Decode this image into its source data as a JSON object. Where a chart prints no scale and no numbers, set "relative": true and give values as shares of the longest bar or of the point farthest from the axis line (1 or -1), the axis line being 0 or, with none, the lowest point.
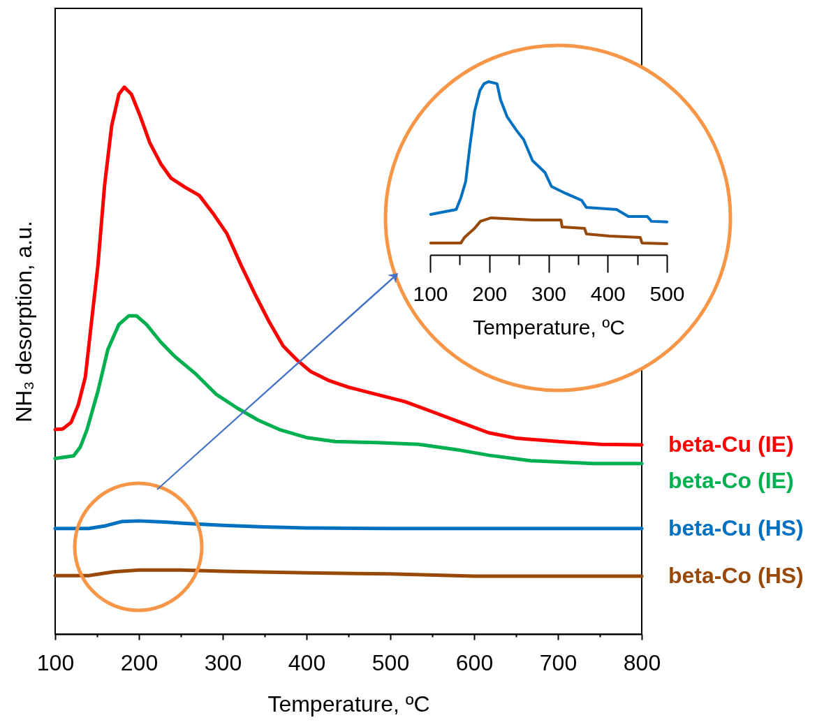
{
  "chart_data": [
    {
      "type": "line",
      "relative": true,
      "xlabel": "Temperature, ºC",
      "ylabel": "NH₃ desorption, a.u.",
      "xlim": [
        100,
        800
      ],
      "xticks": [
        100,
        {
          "value": 150,
          "label": null
        },
        200,
        {
          "value": 250,
          "label": null
        },
        300,
        {
          "value": 350,
          "label": null
        },
        400,
        {
          "value": 450,
          "label": null
        },
        500,
        {
          "value": 550,
          "label": null
        },
        600,
        {
          "value": 650,
          "label": null
        },
        700,
        {
          "value": 750,
          "label": null
        },
        800
      ],
      "series": [
        {
          "name": "beta-Cu (IE)",
          "color": "#ff0000",
          "x": [
            100,
            109,
            119,
            127.5,
            136,
            142.5,
            151,
            159,
            167.5,
            176,
            182.5,
            191,
            201,
            213,
            226,
            238,
            255,
            272,
            288,
            305,
            322,
            338,
            355,
            372,
            388,
            405,
            426,
            451,
            484,
            517.5,
            551,
            584,
            617.5,
            651,
            701,
            751,
            800
          ],
          "values": [
            0.374,
            0.375,
            0.387,
            0.419,
            0.47,
            0.559,
            0.674,
            0.821,
            0.93,
            0.987,
            1.0,
            0.987,
            0.949,
            0.898,
            0.86,
            0.834,
            0.817,
            0.802,
            0.77,
            0.732,
            0.674,
            0.623,
            0.572,
            0.527,
            0.502,
            0.48,
            0.464,
            0.451,
            0.438,
            0.425,
            0.406,
            0.387,
            0.368,
            0.358,
            0.352,
            0.347,
            0.346
          ]
        },
        {
          "name": "beta-Co (IE)",
          "color": "#00b050",
          "x": [
            100,
            122,
            130,
            138,
            151,
            163,
            176,
            188,
            197,
            209,
            226,
            242.5,
            267.5,
            292.5,
            317.5,
            342.5,
            367.5,
            401,
            434,
            484,
            534,
            584,
            617.5,
            667.5,
            742.5,
            800
          ],
          "values": [
            0.321,
            0.326,
            0.342,
            0.374,
            0.444,
            0.521,
            0.566,
            0.582,
            0.582,
            0.566,
            0.534,
            0.508,
            0.476,
            0.438,
            0.413,
            0.391,
            0.374,
            0.359,
            0.352,
            0.35,
            0.347,
            0.336,
            0.327,
            0.317,
            0.312,
            0.312
          ]
        },
        {
          "name": "beta-Cu (HS)",
          "color": "#0070c0",
          "x": [
            100,
            140,
            160,
            180,
            200,
            230,
            260,
            300,
            350,
            400,
            500,
            800
          ],
          "values": [
            0.193,
            0.193,
            0.198,
            0.206,
            0.207,
            0.205,
            0.202,
            0.199,
            0.196,
            0.194,
            0.193,
            0.193
          ]
        },
        {
          "name": "beta-Co (HS)",
          "color": "#984807",
          "x": [
            100,
            140,
            170,
            200,
            250,
            300,
            400,
            500,
            600,
            800
          ],
          "values": [
            0.107,
            0.107,
            0.114,
            0.117,
            0.117,
            0.115,
            0.112,
            0.11,
            0.106,
            0.106
          ]
        }
      ]
    },
    {
      "type": "line",
      "relative": true,
      "xlabel": "Temperature, ºC",
      "xlim": [
        100,
        500
      ],
      "xticks": [
        100,
        {
          "value": 150,
          "label": null
        },
        200,
        {
          "value": 250,
          "label": null
        },
        300,
        {
          "value": 350,
          "label": null
        },
        400,
        {
          "value": 450,
          "label": null
        },
        500
      ],
      "series": [
        {
          "color": "#0070c0",
          "x": [
            101,
            144,
            152,
            160,
            167,
            175,
            184,
            191,
            199,
            213,
            219,
            230,
            246,
            258,
            273,
            294,
            305,
            329,
            356,
            364,
            415,
            435,
            467,
            474,
            500
          ],
          "values": [
            0.234,
            0.262,
            0.331,
            0.423,
            0.625,
            0.827,
            0.948,
            0.988,
            1.0,
            0.988,
            0.895,
            0.798,
            0.718,
            0.665,
            0.544,
            0.476,
            0.395,
            0.355,
            0.315,
            0.274,
            0.262,
            0.222,
            0.222,
            0.194,
            0.19
          ]
        },
        {
          "color": "#984807",
          "x": [
            101,
            152,
            158,
            175,
            185,
            203,
            273,
            321,
            323,
            361,
            364,
            403,
            455,
            458,
            500
          ],
          "values": [
            0.069,
            0.069,
            0.101,
            0.153,
            0.194,
            0.214,
            0.202,
            0.202,
            0.161,
            0.153,
            0.121,
            0.109,
            0.101,
            0.069,
            0.065
          ]
        }
      ]
    }
  ]
}
